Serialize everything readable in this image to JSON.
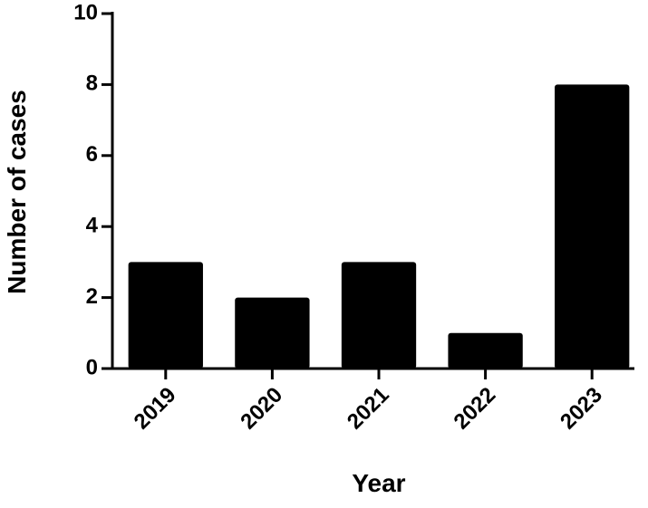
{
  "chart_data": {
    "type": "bar",
    "x_label": "Year",
    "y_label": "Number of cases",
    "categories": [
      "2019",
      "2020",
      "2021",
      "2022",
      "2023"
    ],
    "values": [
      3,
      2,
      3,
      1,
      8
    ],
    "color": "#000000",
    "ylim": [
      0,
      10
    ],
    "yticks": [
      0,
      2,
      4,
      6,
      8,
      10
    ],
    "grid": false
  }
}
